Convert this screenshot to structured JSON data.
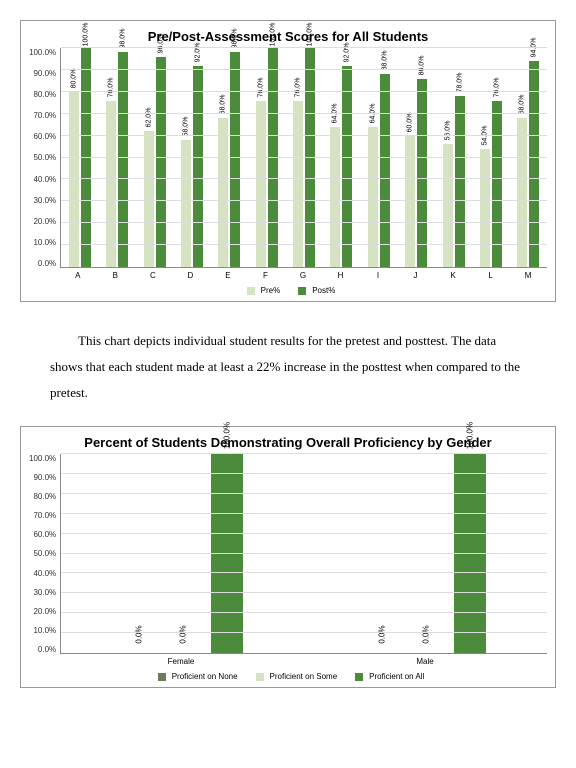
{
  "chart1": {
    "title": "Pre/Post-Assessment Scores for All Students",
    "type": "bar",
    "ylim": [
      0,
      100
    ],
    "ytick_step": 10,
    "ylabel_suffix": "%",
    "categories": [
      "A",
      "B",
      "C",
      "D",
      "E",
      "F",
      "G",
      "H",
      "I",
      "J",
      "K",
      "L",
      "M"
    ],
    "series": [
      {
        "name": "Pre%",
        "color": "#d5e3c3",
        "values": [
          80.0,
          76.0,
          62.0,
          58.0,
          68.0,
          76.0,
          76.0,
          64.0,
          64.0,
          60.0,
          56.0,
          54.0,
          68.0
        ]
      },
      {
        "name": "Post%",
        "color": "#4b8b3b",
        "values": [
          100.0,
          98.0,
          96.0,
          92.0,
          98.0,
          100.0,
          100.0,
          92.0,
          88.0,
          86.0,
          78.0,
          76.0,
          94.0
        ]
      }
    ],
    "grid_color": "#dddddd",
    "axis_color": "#888888",
    "background": "#ffffff",
    "label_fontsize": 7
  },
  "caption": "This chart depicts individual student results for the pretest and posttest. The data shows that each student made at least a 22% increase in the posttest when compared to the pretest.",
  "chart2": {
    "title": "Percent of Students Demonstrating Overall Proficiency by Gender",
    "type": "bar",
    "ylim": [
      0,
      100
    ],
    "ytick_step": 10,
    "ylabel_suffix": "%",
    "categories": [
      "Female",
      "Male"
    ],
    "series": [
      {
        "name": "Proficient on None",
        "color": "#6b7a5a",
        "values": [
          0.0,
          0.0
        ]
      },
      {
        "name": "Proficient on Some",
        "color": "#d5e3c3",
        "values": [
          0.0,
          0.0
        ]
      },
      {
        "name": "Proficient on All",
        "color": "#4b8b3b",
        "values": [
          100.0,
          100.0
        ]
      }
    ],
    "grid_color": "#dddddd",
    "axis_color": "#888888",
    "background": "#ffffff",
    "label_fontsize": 8
  }
}
